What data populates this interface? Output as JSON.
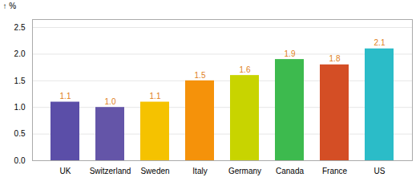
{
  "chart_data": {
    "type": "bar",
    "ylabel": "%",
    "categories": [
      "UK",
      "Switzerland",
      "Sweden",
      "Italy",
      "Germany",
      "Canada",
      "France",
      "US"
    ],
    "values": [
      1.1,
      1.0,
      1.1,
      1.5,
      1.6,
      1.9,
      1.8,
      2.1
    ],
    "value_labels": [
      "1.1",
      "1.0",
      "1.1",
      "1.5",
      "1.6",
      "1.9",
      "1.8",
      "2.1"
    ],
    "colors": [
      "#5b4ea8",
      "#6455a8",
      "#f5c200",
      "#f5920a",
      "#c8d400",
      "#3dba4e",
      "#d44e25",
      "#2bbcc8"
    ],
    "ylim": [
      0,
      2.65
    ],
    "yticks": [
      {
        "value": 0.0,
        "label": "0.0"
      },
      0.5,
      {
        "value": 1.0,
        "label": "1.0"
      },
      1.5,
      {
        "value": 2.0,
        "label": "2.0"
      },
      2.5
    ],
    "grid": true,
    "data_labels": true
  }
}
